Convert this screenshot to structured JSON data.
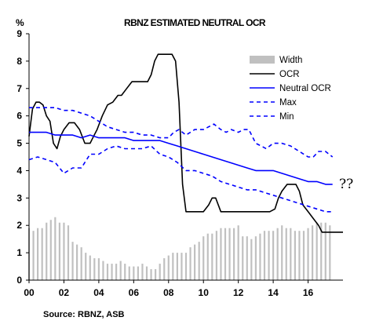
{
  "chart_data": {
    "type": "line",
    "title": "RBNZ ESTIMATED NEUTRAL OCR",
    "ylabel": "%",
    "ylim": [
      0,
      9
    ],
    "xlim": [
      2000,
      2018
    ],
    "yticks": [
      "0",
      "1",
      "2",
      "3",
      "4",
      "5",
      "6",
      "7",
      "8",
      "9"
    ],
    "xticks": [
      {
        "label": "00",
        "value": 2000
      },
      {
        "label": "02",
        "value": 2002
      },
      {
        "label": "04",
        "value": 2004
      },
      {
        "label": "06",
        "value": 2006
      },
      {
        "label": "08",
        "value": 2008
      },
      {
        "label": "10",
        "value": 2010
      },
      {
        "label": "12",
        "value": 2012
      },
      {
        "label": "14",
        "value": 2014
      },
      {
        "label": "16",
        "value": 2016
      }
    ],
    "legend_position": "top-right",
    "source": "Source: RBNZ, ASB",
    "annotation": "??",
    "colors": {
      "width": "#c0c0c0",
      "ocr": "#000000",
      "neutral": "#0000ff",
      "band": "#0000ff"
    },
    "series": [
      {
        "name": "Width",
        "kind": "bar",
        "x": [
          2000.0,
          2000.25,
          2000.5,
          2000.75,
          2001.0,
          2001.25,
          2001.5,
          2001.75,
          2002.0,
          2002.25,
          2002.5,
          2002.75,
          2003.0,
          2003.25,
          2003.5,
          2003.75,
          2004.0,
          2004.25,
          2004.5,
          2004.75,
          2005.0,
          2005.25,
          2005.5,
          2005.75,
          2006.0,
          2006.25,
          2006.5,
          2006.75,
          2007.0,
          2007.25,
          2007.5,
          2007.75,
          2008.0,
          2008.25,
          2008.5,
          2008.75,
          2009.0,
          2009.25,
          2009.5,
          2009.75,
          2010.0,
          2010.25,
          2010.5,
          2010.75,
          2011.0,
          2011.25,
          2011.5,
          2011.75,
          2012.0,
          2012.25,
          2012.5,
          2012.75,
          2013.0,
          2013.25,
          2013.5,
          2013.75,
          2014.0,
          2014.25,
          2014.5,
          2014.75,
          2015.0,
          2015.25,
          2015.5,
          2015.75,
          2016.0,
          2016.25,
          2016.5,
          2016.75,
          2017.0,
          2017.25
        ],
        "values": [
          1.9,
          1.8,
          1.9,
          1.9,
          2.1,
          2.2,
          2.3,
          2.1,
          2.1,
          2.0,
          1.4,
          1.3,
          1.2,
          1.0,
          0.9,
          0.8,
          0.8,
          0.7,
          0.6,
          0.6,
          0.6,
          0.7,
          0.6,
          0.5,
          0.5,
          0.5,
          0.6,
          0.5,
          0.4,
          0.4,
          0.6,
          0.8,
          0.9,
          1.0,
          1.0,
          1.0,
          1.0,
          1.2,
          1.3,
          1.4,
          1.6,
          1.7,
          1.7,
          1.8,
          1.9,
          1.9,
          1.9,
          1.9,
          2.0,
          1.6,
          1.6,
          1.5,
          1.6,
          1.7,
          1.8,
          1.8,
          1.8,
          1.9,
          2.0,
          1.9,
          1.9,
          1.8,
          1.8,
          1.8,
          1.9,
          2.0,
          2.1,
          2.1,
          2.1,
          2.0
        ]
      },
      {
        "name": "OCR",
        "kind": "line",
        "x": [
          2000.0,
          2000.2,
          2000.4,
          2000.6,
          2000.8,
          2001.0,
          2001.2,
          2001.4,
          2001.6,
          2001.8,
          2002.0,
          2002.3,
          2002.6,
          2002.9,
          2003.2,
          2003.5,
          2003.7,
          2003.9,
          2004.2,
          2004.5,
          2004.8,
          2005.1,
          2005.3,
          2005.6,
          2005.9,
          2006.1,
          2006.5,
          2006.8,
          2007.0,
          2007.2,
          2007.4,
          2007.6,
          2007.9,
          2008.2,
          2008.4,
          2008.6,
          2008.8,
          2009.0,
          2009.2,
          2009.4,
          2009.7,
          2010.0,
          2010.3,
          2010.5,
          2010.7,
          2011.0,
          2011.2,
          2011.5,
          2012.0,
          2012.5,
          2013.0,
          2013.5,
          2013.8,
          2014.1,
          2014.3,
          2014.5,
          2014.8,
          2015.1,
          2015.3,
          2015.5,
          2015.7,
          2016.0,
          2016.3,
          2016.6,
          2016.8,
          2017.0,
          2017.5,
          2018.0
        ],
        "values": [
          5.25,
          6.25,
          6.5,
          6.5,
          6.4,
          6.0,
          5.8,
          5.0,
          4.8,
          5.25,
          5.5,
          5.75,
          5.75,
          5.5,
          5.0,
          5.0,
          5.25,
          5.5,
          6.0,
          6.4,
          6.5,
          6.75,
          6.75,
          7.0,
          7.25,
          7.25,
          7.25,
          7.25,
          7.5,
          8.0,
          8.25,
          8.25,
          8.25,
          8.25,
          8.0,
          6.5,
          3.5,
          2.5,
          2.5,
          2.5,
          2.5,
          2.5,
          2.75,
          3.0,
          3.0,
          2.5,
          2.5,
          2.5,
          2.5,
          2.5,
          2.5,
          2.5,
          2.5,
          2.6,
          3.0,
          3.25,
          3.5,
          3.5,
          3.5,
          3.25,
          2.75,
          2.5,
          2.25,
          2.0,
          1.75,
          1.75,
          1.75,
          1.75
        ]
      },
      {
        "name": "Neutral OCR",
        "kind": "line",
        "x": [
          2000.0,
          2000.5,
          2001.0,
          2001.5,
          2002.0,
          2002.5,
          2003.0,
          2003.5,
          2004.0,
          2004.5,
          2005.0,
          2005.5,
          2006.0,
          2006.5,
          2007.0,
          2007.5,
          2008.0,
          2008.5,
          2009.0,
          2009.5,
          2010.0,
          2010.5,
          2011.0,
          2011.5,
          2012.0,
          2012.5,
          2013.0,
          2013.5,
          2014.0,
          2014.5,
          2015.0,
          2015.5,
          2016.0,
          2016.5,
          2017.0,
          2017.4
        ],
        "values": [
          5.4,
          5.4,
          5.4,
          5.3,
          5.3,
          5.3,
          5.2,
          5.3,
          5.2,
          5.2,
          5.2,
          5.2,
          5.1,
          5.1,
          5.1,
          5.1,
          5.0,
          4.9,
          4.8,
          4.7,
          4.6,
          4.5,
          4.4,
          4.3,
          4.2,
          4.1,
          4.0,
          4.0,
          4.0,
          3.9,
          3.8,
          3.7,
          3.6,
          3.6,
          3.5,
          3.5
        ]
      },
      {
        "name": "Max",
        "kind": "dashed",
        "x": [
          2000.0,
          2000.5,
          2001.0,
          2001.5,
          2002.0,
          2002.5,
          2003.0,
          2003.5,
          2004.0,
          2004.5,
          2005.0,
          2005.5,
          2006.0,
          2006.5,
          2007.0,
          2007.5,
          2008.0,
          2008.3,
          2008.6,
          2009.0,
          2009.5,
          2010.0,
          2010.3,
          2010.6,
          2011.0,
          2011.3,
          2011.6,
          2012.0,
          2012.3,
          2012.6,
          2013.0,
          2013.3,
          2013.6,
          2014.0,
          2014.5,
          2015.0,
          2015.5,
          2016.0,
          2016.3,
          2016.6,
          2017.0,
          2017.4
        ],
        "values": [
          6.3,
          6.3,
          6.3,
          6.3,
          6.2,
          6.2,
          6.1,
          6.0,
          5.8,
          5.6,
          5.5,
          5.4,
          5.4,
          5.3,
          5.3,
          5.2,
          5.2,
          5.4,
          5.5,
          5.3,
          5.5,
          5.5,
          5.6,
          5.7,
          5.5,
          5.4,
          5.5,
          5.4,
          5.5,
          5.5,
          5.0,
          4.9,
          4.8,
          5.0,
          5.0,
          4.9,
          4.7,
          4.5,
          4.5,
          4.7,
          4.7,
          4.5
        ]
      },
      {
        "name": "Min",
        "kind": "dashed",
        "x": [
          2000.0,
          2000.5,
          2001.0,
          2001.5,
          2002.0,
          2002.5,
          2003.0,
          2003.5,
          2004.0,
          2004.5,
          2005.0,
          2005.5,
          2006.0,
          2006.5,
          2007.0,
          2007.5,
          2008.0,
          2008.5,
          2009.0,
          2009.5,
          2010.0,
          2010.5,
          2011.0,
          2011.5,
          2012.0,
          2012.5,
          2013.0,
          2013.5,
          2014.0,
          2014.5,
          2015.0,
          2015.5,
          2016.0,
          2016.5,
          2017.0,
          2017.4
        ],
        "values": [
          4.4,
          4.5,
          4.4,
          4.3,
          3.9,
          4.1,
          4.1,
          4.6,
          4.6,
          4.8,
          4.9,
          4.8,
          4.8,
          4.8,
          4.9,
          4.6,
          4.5,
          4.3,
          4.0,
          4.0,
          3.9,
          3.8,
          3.6,
          3.5,
          3.4,
          3.3,
          3.3,
          3.2,
          3.1,
          3.0,
          2.9,
          2.8,
          2.7,
          2.6,
          2.5,
          2.5
        ]
      }
    ]
  }
}
